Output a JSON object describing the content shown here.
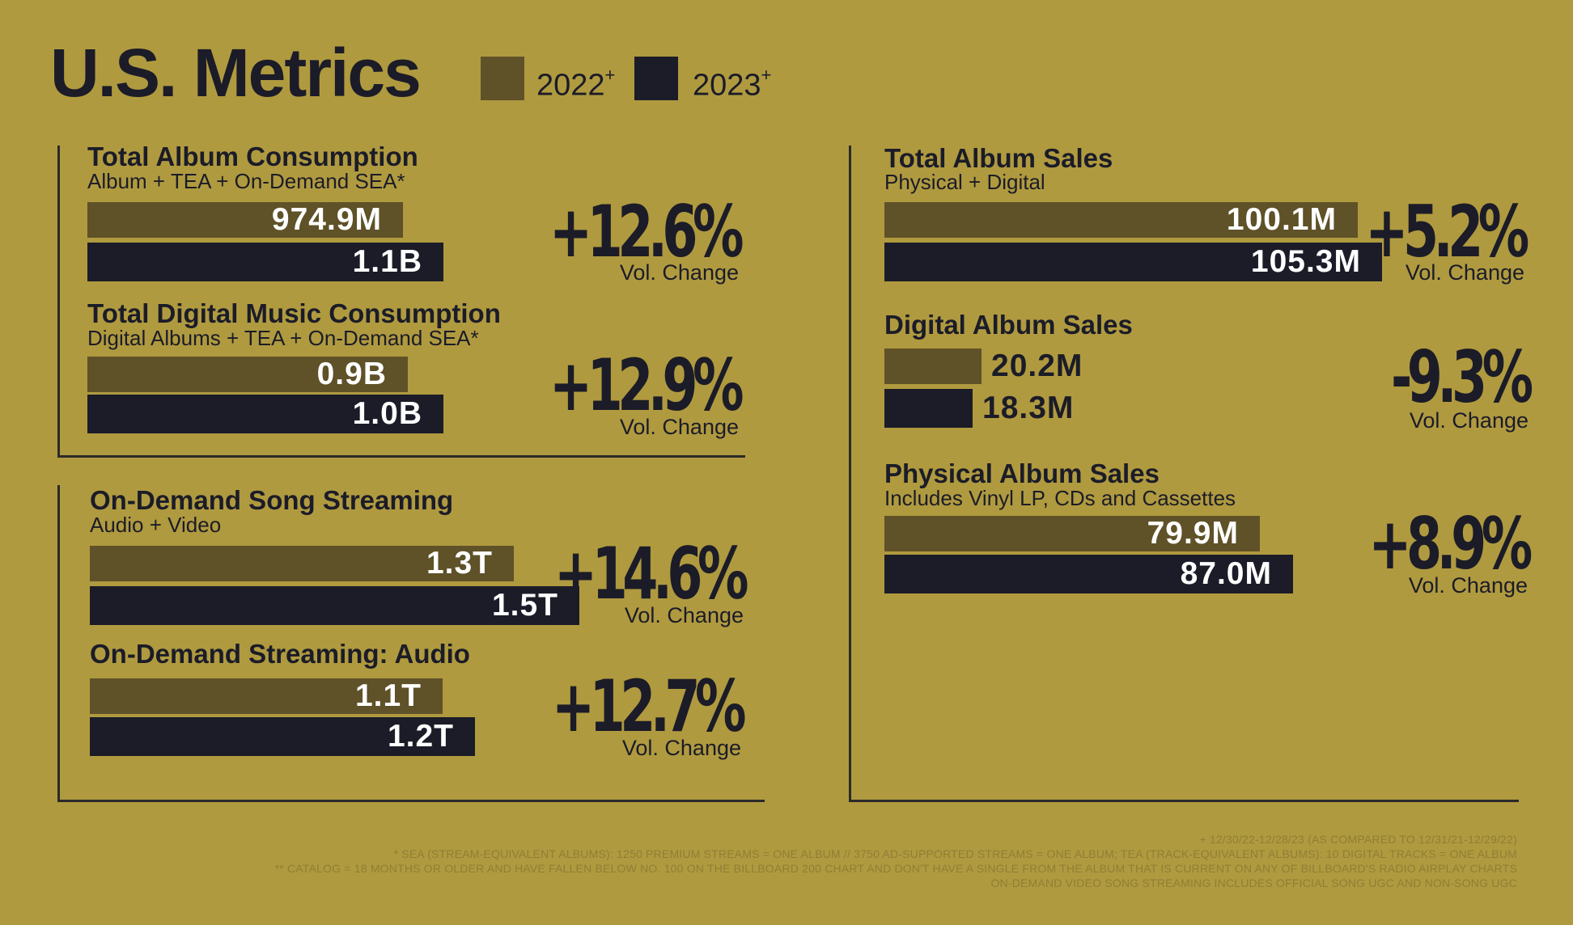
{
  "title": "U.S. Metrics",
  "legend": [
    {
      "label": "2022",
      "mark": "+",
      "color": "#5f5128"
    },
    {
      "label": "2023",
      "mark": "+",
      "color": "#1b1c28"
    }
  ],
  "colors": {
    "background": "#b09a3f",
    "bar_2022": "#5f5128",
    "bar_2023": "#1b1c28"
  },
  "chart_data": [
    {
      "type": "bar",
      "title": "Total Album Consumption",
      "subtitle": "Album + TEA + On-Demand SEA*",
      "series": [
        {
          "name": "2022",
          "values": [
            974.9
          ],
          "label": "974.9M"
        },
        {
          "name": "2023",
          "values": [
            1100
          ],
          "label": "1.1B"
        }
      ],
      "unit": "millions",
      "change": "+12.6%",
      "change_label": "Vol. Change"
    },
    {
      "type": "bar",
      "title": "Total Digital Music Consumption",
      "subtitle": "Digital Albums + TEA + On-Demand SEA*",
      "series": [
        {
          "name": "2022",
          "values": [
            900
          ],
          "label": "0.9B"
        },
        {
          "name": "2023",
          "values": [
            1000
          ],
          "label": "1.0B"
        }
      ],
      "unit": "millions",
      "change": "+12.9%",
      "change_label": "Vol. Change"
    },
    {
      "type": "bar",
      "title": "On-Demand Song Streaming",
      "subtitle": "Audio + Video",
      "series": [
        {
          "name": "2022",
          "values": [
            1.3
          ],
          "label": "1.3T"
        },
        {
          "name": "2023",
          "values": [
            1.5
          ],
          "label": "1.5T"
        }
      ],
      "unit": "trillions",
      "change": "+14.6%",
      "change_label": "Vol. Change"
    },
    {
      "type": "bar",
      "title": "On-Demand Streaming: Audio",
      "subtitle": "",
      "series": [
        {
          "name": "2022",
          "values": [
            1.1
          ],
          "label": "1.1T"
        },
        {
          "name": "2023",
          "values": [
            1.2
          ],
          "label": "1.2T"
        }
      ],
      "unit": "trillions",
      "change": "+12.7%",
      "change_label": "Vol. Change"
    },
    {
      "type": "bar",
      "title": "Total Album Sales",
      "subtitle": "Physical + Digital",
      "series": [
        {
          "name": "2022",
          "values": [
            100.1
          ],
          "label": "100.1M"
        },
        {
          "name": "2023",
          "values": [
            105.3
          ],
          "label": "105.3M"
        }
      ],
      "unit": "millions",
      "change": "+5.2%",
      "change_label": "Vol. Change"
    },
    {
      "type": "bar",
      "title": "Digital Album Sales",
      "subtitle": "",
      "series": [
        {
          "name": "2022",
          "values": [
            20.2
          ],
          "label": "20.2M"
        },
        {
          "name": "2023",
          "values": [
            18.3
          ],
          "label": "18.3M"
        }
      ],
      "unit": "millions",
      "change": "-9.3%",
      "change_label": "Vol. Change"
    },
    {
      "type": "bar",
      "title": "Physical Album Sales",
      "subtitle": "Includes Vinyl LP, CDs and Cassettes",
      "series": [
        {
          "name": "2022",
          "values": [
            79.9
          ],
          "label": "79.9M"
        },
        {
          "name": "2023",
          "values": [
            87.0
          ],
          "label": "87.0M"
        }
      ],
      "unit": "millions",
      "change": "+8.9%",
      "change_label": "Vol. Change"
    }
  ],
  "footnotes": [
    "+ 12/30/22-12/28/23 (AS COMPARED TO 12/31/21-12/29/22)",
    "* SEA (STREAM-EQUIVALENT ALBUMS): 1250 PREMIUM STREAMS = ONE ALBUM // 3750 AD-SUPPORTED STREAMS = ONE ALBUM; TEA (TRACK-EQUIVALENT ALBUMS): 10 DIGITAL TRACKS = ONE ALBUM",
    "** CATALOG = 18 MONTHS OR OLDER AND HAVE FALLEN BELOW NO. 100 ON THE BILLBOARD 200 CHART AND DON'T HAVE A SINGLE FROM THE ALBUM THAT IS CURRENT ON ANY OF BILLBOARD'S RADIO AIRPLAY CHARTS",
    "ON-DEMAND VIDEO SONG STREAMING INCLUDES OFFICIAL SONG UGC AND NON-SONG UGC"
  ]
}
